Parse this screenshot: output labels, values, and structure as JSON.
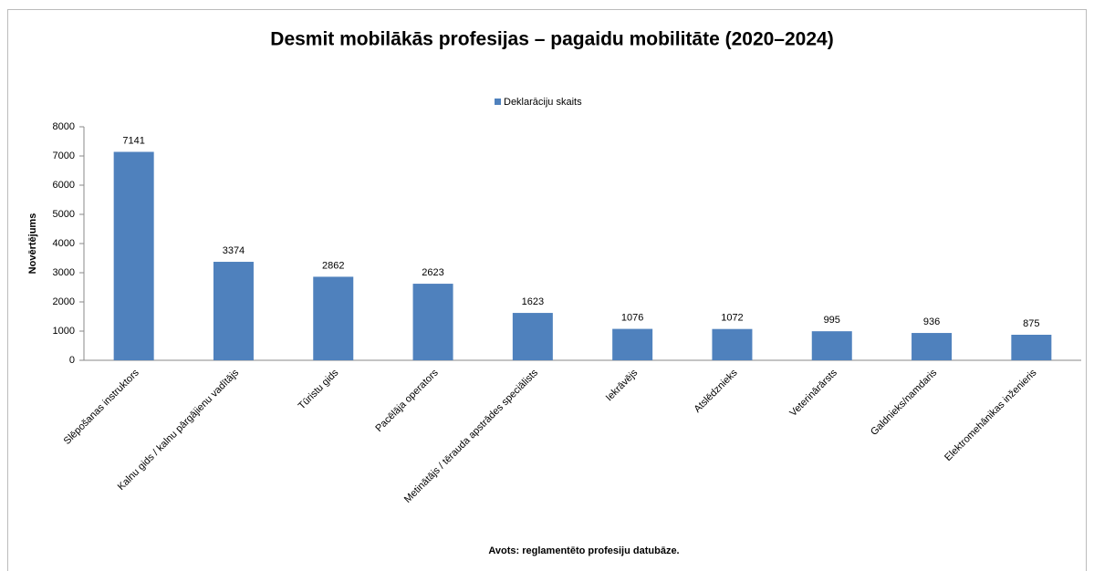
{
  "chart_data": {
    "type": "bar",
    "title": "Desmit mobilākās profesijas – pagaidu mobilitāte (2020–2024)",
    "ylabel": "Novērtējums",
    "xlabel": "Avots: reglamentēto profesiju datubāze.",
    "categories": [
      "Slēpošanas instruktors",
      "Kalnu gids / kalnu pārgājienu vadītājs",
      "Tūristu gids",
      "Pacēlāja operators",
      "Metinātājs / tērauda apstrādes speciālists",
      "Iekrāvējs",
      "Atslēdznieks",
      "Veterinārārsts",
      "Galdnieks/namdaris",
      "Elektromehānikas inženieris"
    ],
    "series": [
      {
        "name": "Deklarāciju skaits",
        "color": "#4f81bd",
        "values": [
          7141,
          3374,
          2862,
          2623,
          1623,
          1076,
          1072,
          995,
          936,
          875
        ]
      }
    ],
    "ylim": [
      0,
      8000
    ],
    "yticks": [
      0,
      1000,
      2000,
      3000,
      4000,
      5000,
      6000,
      7000,
      8000
    ],
    "grid": false,
    "legend": "top"
  }
}
